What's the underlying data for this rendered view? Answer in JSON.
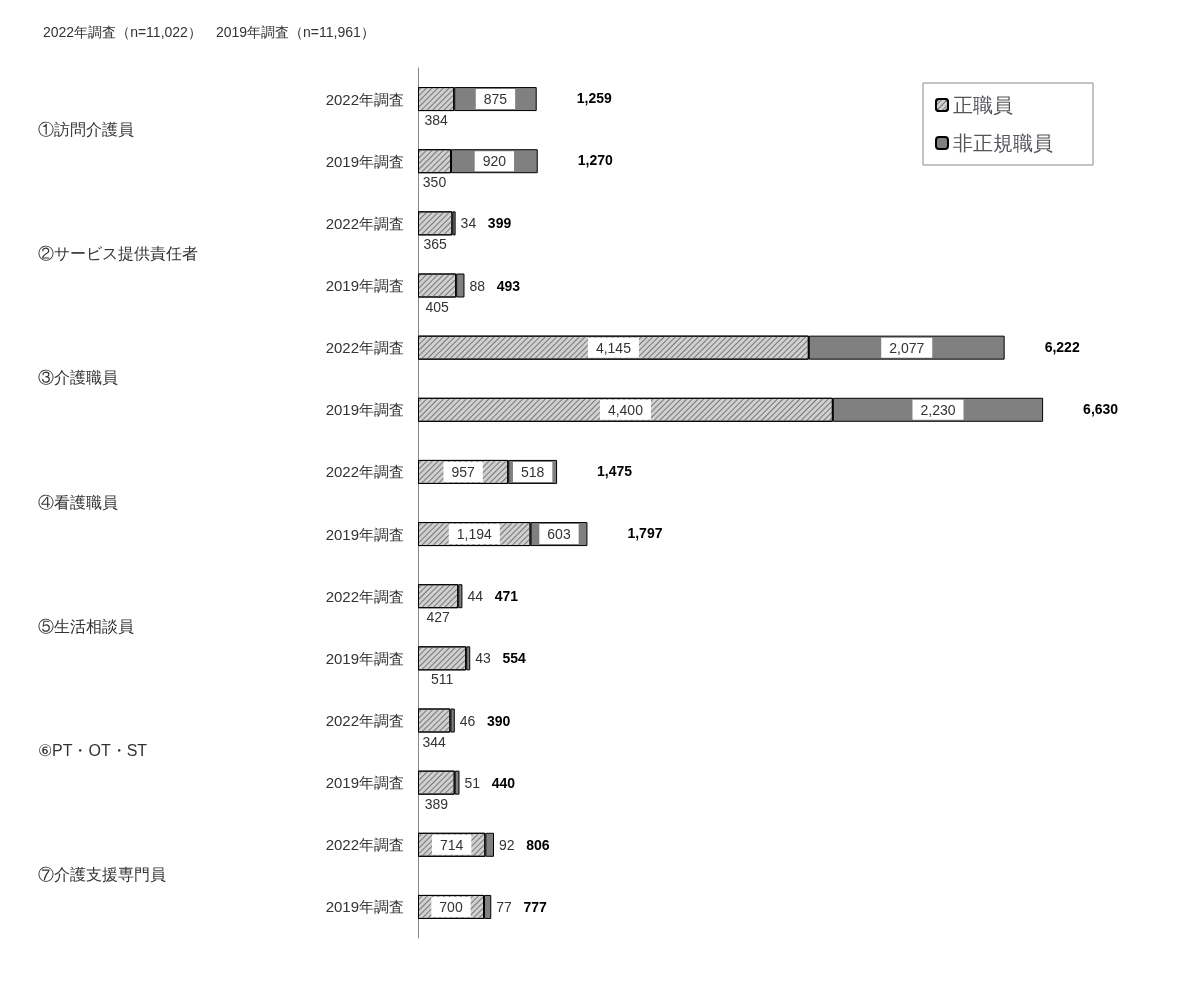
{
  "chart_data": {
    "type": "bar",
    "orientation": "horizontal",
    "stacked": true,
    "subtitle": "2022年調査（n=11,022）　2019年調査（n=11,961）",
    "categories": [
      "2022年調査",
      "2019年調査",
      "2022年調査",
      "2019年調査",
      "2022年調査",
      "2019年調査",
      "2022年調査",
      "2019年調査",
      "2022年調査",
      "2019年調査",
      "2022年調査",
      "2019年調査",
      "2022年調査",
      "2019年調査"
    ],
    "series": [
      {
        "name": "正職員",
        "color": "#d0d0d0",
        "values": [
          384,
          350,
          365,
          405,
          4145,
          4400,
          957,
          1194,
          427,
          511,
          344,
          389,
          714,
          700
        ],
        "value_labels": [
          "384",
          "350",
          "365",
          "405",
          "4,145",
          "4,400",
          "957",
          "1,194",
          "427",
          "511",
          "344",
          "389",
          "714",
          "700"
        ]
      },
      {
        "name": "非正規職員",
        "color": "#808080",
        "values": [
          875,
          920,
          34,
          88,
          2077,
          2230,
          518,
          603,
          44,
          43,
          46,
          51,
          92,
          77
        ],
        "value_labels": [
          "875",
          "920",
          "34",
          "88",
          "2,077",
          "2,230",
          "518",
          "603",
          "44",
          "43",
          "46",
          "51",
          "92",
          "77"
        ]
      }
    ],
    "totals": [
      "1,259",
      "1,270",
      "399",
      "493",
      "6,222",
      "6,630",
      "1,475",
      "1,797",
      "471",
      "554",
      "390",
      "440",
      "806",
      "777"
    ],
    "annotations": [
      "①訪問介護員",
      "②サービス提供責任者",
      "③介護職員",
      "④看護職員",
      "⑤生活相談員",
      "⑥PT・OT・ST",
      "⑦介護支援専門員"
    ],
    "legend": "top right",
    "tick_labels": "y"
  }
}
